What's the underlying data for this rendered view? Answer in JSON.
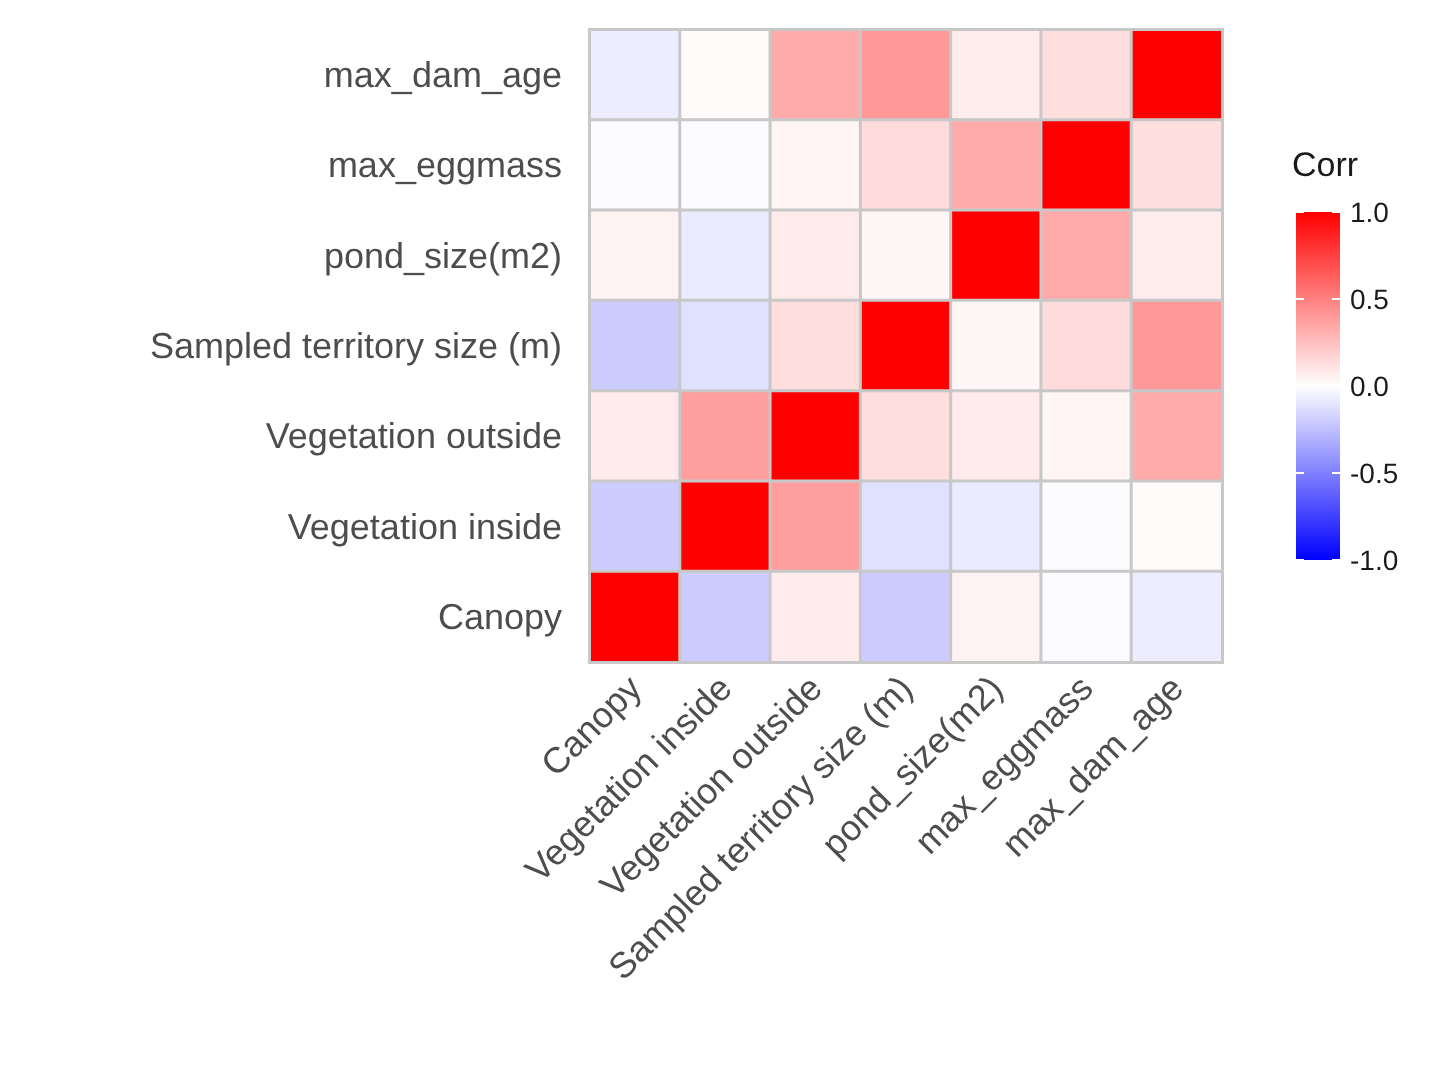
{
  "chart_data": {
    "type": "heatmap",
    "categories": [
      "Canopy",
      "Vegetation inside",
      "Vegetation outside",
      "Sampled territory size (m)",
      "pond_size(m2)",
      "max_eggmass",
      "max_dam_age"
    ],
    "y_categories": [
      "max_dam_age",
      "max_eggmass",
      "pond_size(m2)",
      "Sampled territory size (m)",
      "Vegetation outside",
      "Vegetation inside",
      "Canopy"
    ],
    "cells": [
      [
        -0.07,
        0.02,
        0.33,
        0.4,
        0.07,
        0.13,
        1
      ],
      [
        -0.02,
        -0.01,
        0.04,
        0.14,
        0.33,
        1,
        0.13
      ],
      [
        0.05,
        -0.08,
        0.08,
        0.03,
        1,
        0.33,
        0.07
      ],
      [
        -0.2,
        -0.12,
        0.13,
        1,
        0.03,
        0.14,
        0.4
      ],
      [
        0.08,
        0.38,
        1,
        0.13,
        0.08,
        0.04,
        0.33
      ],
      [
        -0.2,
        1,
        0.38,
        -0.12,
        -0.08,
        -0.01,
        0.02
      ],
      [
        1,
        -0.2,
        0.08,
        -0.2,
        0.05,
        -0.02,
        -0.07
      ]
    ],
    "clabel": "Corr",
    "clim": [
      -1,
      1
    ],
    "cticks": [
      {
        "value": 1,
        "label": "1.0"
      },
      {
        "value": 0.5,
        "label": "0.5"
      },
      {
        "value": 0,
        "label": "0.0"
      },
      {
        "value": -0.5,
        "label": "-0.5"
      },
      {
        "value": -1,
        "label": "-1.0"
      }
    ]
  }
}
